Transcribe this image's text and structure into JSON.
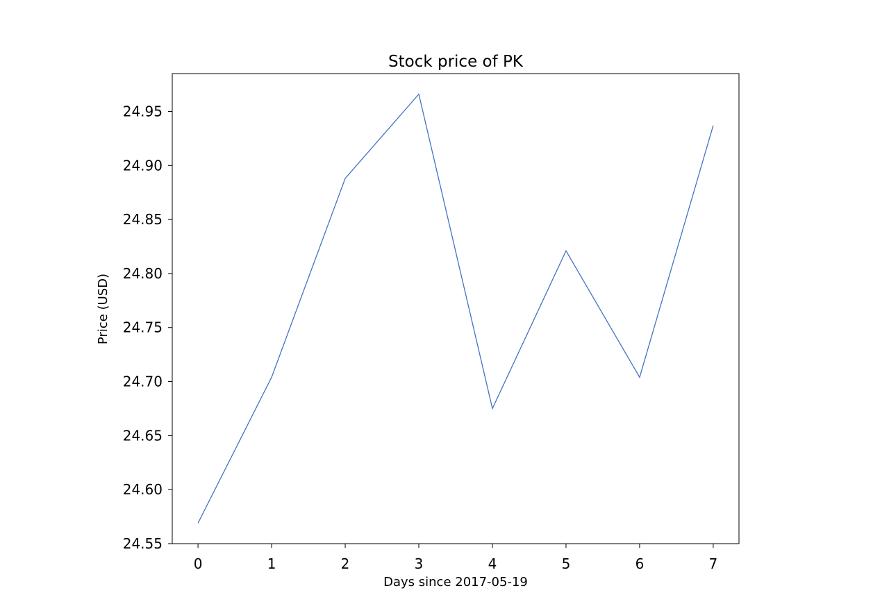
{
  "chart_data": {
    "type": "line",
    "title": "Stock price of PK",
    "xlabel": "Days since 2017-05-19",
    "ylabel": "Price (USD)",
    "x": [
      0,
      1,
      2,
      3,
      4,
      5,
      6,
      7
    ],
    "series": [
      {
        "values": [
          24.569,
          24.704,
          24.888,
          24.966,
          24.675,
          24.821,
          24.704,
          24.937
        ]
      }
    ],
    "xticks": [
      "0",
      "1",
      "2",
      "3",
      "4",
      "5",
      "6",
      "7"
    ],
    "yticks": [
      "24.55",
      "24.60",
      "24.65",
      "24.70",
      "24.75",
      "24.80",
      "24.85",
      "24.90",
      "24.95"
    ],
    "xlim": [
      -0.35,
      7.35
    ],
    "ylim": [
      24.55,
      24.985
    ],
    "grid": false,
    "line_color": "#4472c4"
  }
}
